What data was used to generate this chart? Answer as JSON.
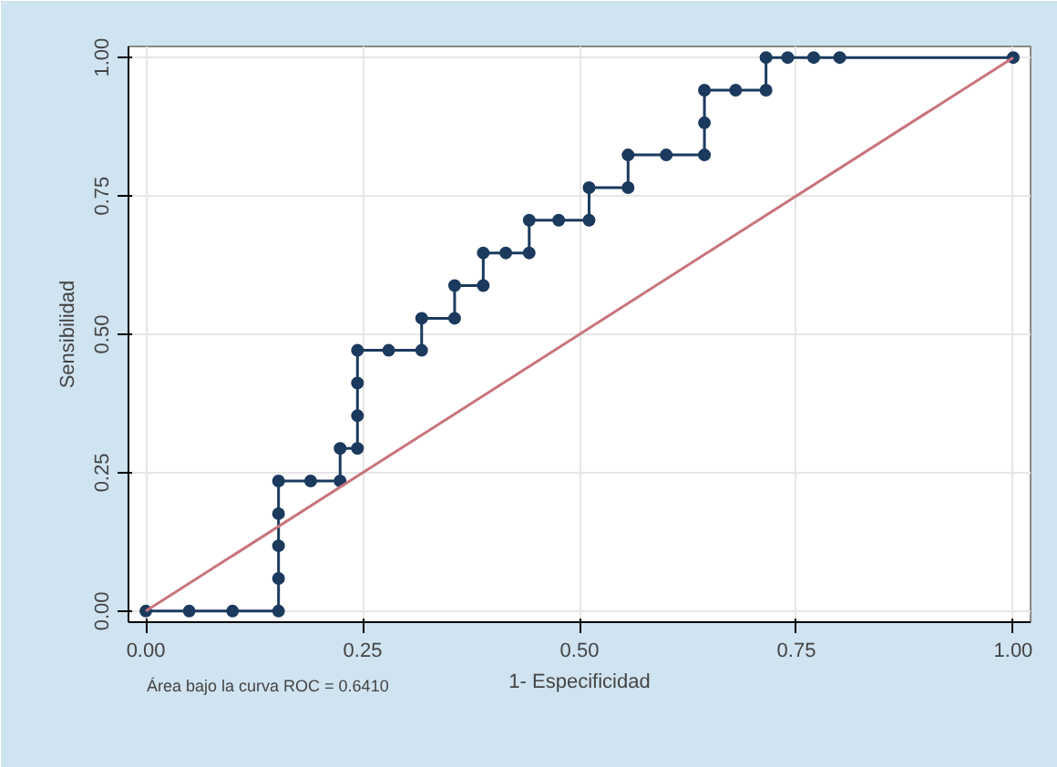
{
  "chart_data": {
    "type": "line",
    "xlabel": "1- Especificidad",
    "ylabel": "Sensibilidad",
    "annotations": [
      "Área bajo la curva ROC = 0.6410"
    ],
    "xlim": [
      -0.02,
      1.02
    ],
    "ylim": [
      -0.02,
      1.02
    ],
    "xticks": [
      {
        "value": 0,
        "label": "0.00"
      },
      {
        "value": 0.25,
        "label": "0.25"
      },
      {
        "value": 0.5,
        "label": "0.50"
      },
      {
        "value": 0.75,
        "label": "0.75"
      },
      {
        "value": 1,
        "label": "1.00"
      }
    ],
    "yticks": [
      {
        "value": 0,
        "label": "0.00"
      },
      {
        "value": 0.25,
        "label": "0.25"
      },
      {
        "value": 0.5,
        "label": "0.50"
      },
      {
        "value": 0.75,
        "label": "0.75"
      },
      {
        "value": 1,
        "label": "1.00"
      }
    ],
    "grid": true,
    "series": [
      {
        "color": "#1b3a5e",
        "marker": "circle",
        "x": [
          0,
          0.05,
          0.1,
          0.153,
          0.153,
          0.153,
          0.153,
          0.153,
          0.19,
          0.224,
          0.224,
          0.244,
          0.244,
          0.244,
          0.244,
          0.28,
          0.318,
          0.318,
          0.356,
          0.356,
          0.389,
          0.389,
          0.415,
          0.442,
          0.442,
          0.476,
          0.511,
          0.511,
          0.556,
          0.556,
          0.6,
          0.644,
          0.644,
          0.644,
          0.68,
          0.715,
          0.715,
          0.74,
          0.77,
          0.8,
          1
        ],
        "values": [
          0,
          0,
          0,
          0,
          0.059,
          0.118,
          0.176,
          0.235,
          0.235,
          0.235,
          0.294,
          0.294,
          0.353,
          0.412,
          0.471,
          0.471,
          0.471,
          0.529,
          0.529,
          0.588,
          0.588,
          0.647,
          0.647,
          0.647,
          0.706,
          0.706,
          0.706,
          0.765,
          0.765,
          0.824,
          0.824,
          0.824,
          0.882,
          0.941,
          0.941,
          0.941,
          1,
          1,
          1,
          1,
          1
        ]
      },
      {
        "color": "#c8747c",
        "marker": "none",
        "x": [
          0,
          1
        ],
        "values": [
          0,
          1
        ]
      }
    ]
  }
}
